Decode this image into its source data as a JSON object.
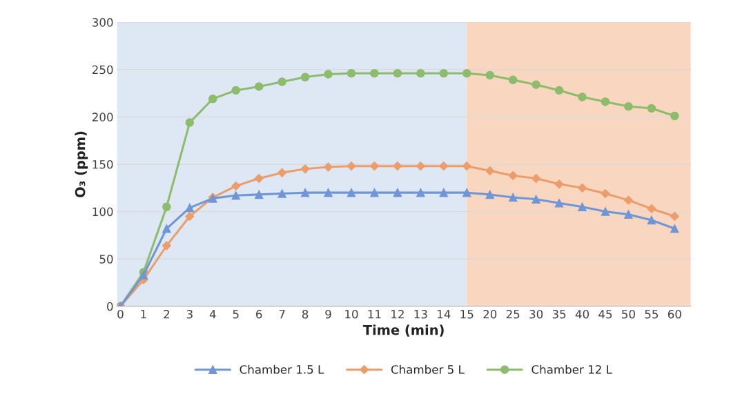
{
  "chart_data": {
    "type": "line",
    "xlabel": "Time (min)",
    "ylabel": "O₃ (ppm)",
    "categories": [
      "0",
      "1",
      "2",
      "3",
      "4",
      "5",
      "6",
      "7",
      "8",
      "9",
      "10",
      "11",
      "12",
      "13",
      "14",
      "15",
      "20",
      "25",
      "30",
      "35",
      "40",
      "45",
      "50",
      "55",
      "60"
    ],
    "series": [
      {
        "name": "Chamber 1.5 L",
        "color": "#7096d6",
        "marker": "triangle",
        "values": [
          0,
          33,
          82,
          104,
          114,
          117,
          118,
          119,
          120,
          120,
          120,
          120,
          120,
          120,
          120,
          120,
          118,
          115,
          113,
          109,
          105,
          100,
          97,
          91,
          82
        ]
      },
      {
        "name": "Chamber 5 L",
        "color": "#eb9e6c",
        "marker": "diamond",
        "values": [
          0,
          28,
          64,
          95,
          115,
          127,
          135,
          141,
          145,
          147,
          148,
          148,
          148,
          148,
          148,
          148,
          143,
          138,
          135,
          129,
          125,
          119,
          112,
          103,
          95
        ]
      },
      {
        "name": "Chamber 12 L",
        "color": "#8cbc6c",
        "marker": "circle",
        "values": [
          0,
          36,
          105,
          194,
          219,
          228,
          232,
          237,
          242,
          245,
          246,
          246,
          246,
          246,
          246,
          246,
          244,
          239,
          234,
          228,
          221,
          216,
          211,
          209,
          201
        ]
      }
    ],
    "bands": [
      {
        "axis": "x",
        "from": "0",
        "to": "15",
        "color": "#dde8f4"
      },
      {
        "axis": "x",
        "from": "15",
        "to": "60",
        "color": "#f8d6c0"
      }
    ],
    "ylim": [
      0,
      300
    ],
    "yticks": [
      0,
      50,
      100,
      150,
      200,
      250,
      300
    ],
    "grid": "y",
    "legend": "bottom"
  }
}
